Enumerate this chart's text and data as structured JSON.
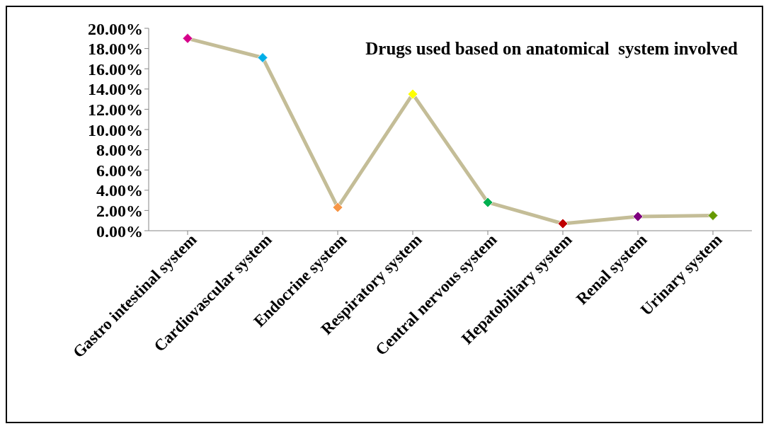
{
  "chart_data": {
    "type": "line",
    "title": "Drugs used based on anatomical  system involved",
    "categories": [
      "Gastro intestinal system",
      "Cardiovascular system",
      "Endocrine system",
      "Respiratory system",
      "Central nervous system",
      "Hepatobiliary system",
      "Renal system",
      "Urinary system"
    ],
    "series": [
      {
        "color": "#c4bd97",
        "colors": [
          "#d6008a",
          "#00aee8",
          "#f79646",
          "#ffff00",
          "#00b050",
          "#c00000",
          "#800080",
          "#669900"
        ],
        "values": [
          19.0,
          17.1,
          2.3,
          13.5,
          2.8,
          0.7,
          1.4,
          1.5
        ]
      }
    ],
    "ylim": [
      0,
      20
    ],
    "yticks": [
      {
        "value": 0,
        "label": "0.00%"
      },
      {
        "value": 2,
        "label": "2.00%"
      },
      {
        "value": 4,
        "label": "4.00%"
      },
      {
        "value": 6,
        "label": "6.00%"
      },
      {
        "value": 8,
        "label": "8.00%"
      },
      {
        "value": 10,
        "label": "10.00%"
      },
      {
        "value": 12,
        "label": "12.00%"
      },
      {
        "value": 14,
        "label": "14.00%"
      },
      {
        "value": 16,
        "label": "16.00%"
      },
      {
        "value": 18,
        "label": "18.00%"
      },
      {
        "value": 20,
        "label": "20.00%"
      }
    ],
    "grid": false,
    "legend": false,
    "marker": "diamond",
    "line_style": "solid"
  }
}
